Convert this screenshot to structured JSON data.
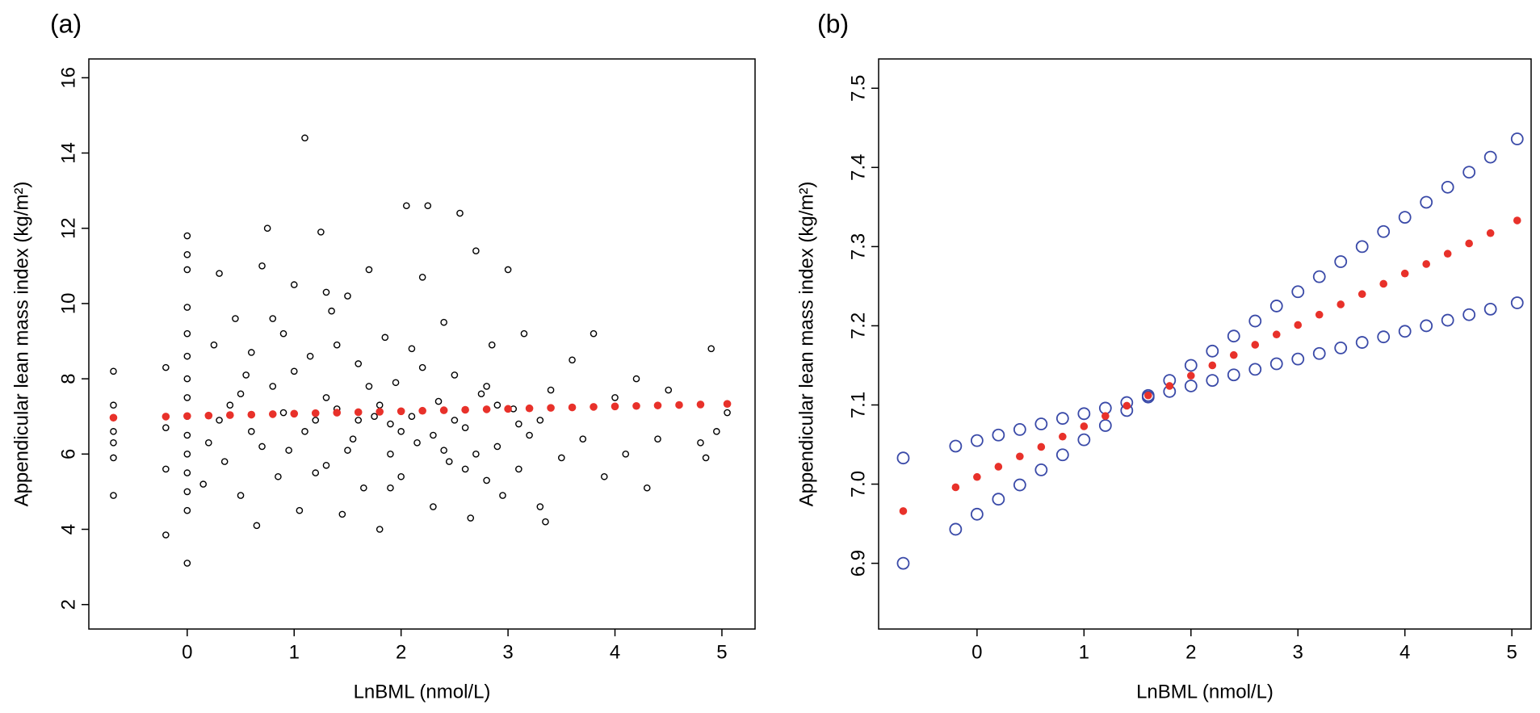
{
  "chart_data": [
    {
      "type": "scatter",
      "title": "(a)",
      "x_label": "LnBML (nmol/L)",
      "y_label": "Appendicular lean mass index (kg/m²)",
      "xlim": [
        -0.92,
        5.31
      ],
      "ylim": [
        1.35,
        16.5
      ],
      "xticks": [
        0,
        1,
        2,
        3,
        4,
        5
      ],
      "yticks": [
        2,
        4,
        6,
        8,
        10,
        12,
        14,
        16
      ],
      "series": [
        {
          "color": "#000000",
          "marker": "open",
          "x": [
            -0.69,
            -0.69,
            -0.69,
            -0.69,
            -0.69,
            -0.69,
            -0.2,
            -0.2,
            -0.2,
            -0.2,
            0,
            0,
            0,
            0,
            0,
            0,
            0,
            0,
            0,
            0,
            0,
            0,
            0,
            0,
            0,
            0.15,
            0.2,
            0.25,
            0.3,
            0.35,
            0.4,
            0.45,
            0.5,
            0.55,
            0.6,
            0.65,
            0.7,
            0.75,
            0.8,
            0.85,
            0.9,
            0.95,
            1.0,
            1.05,
            1.1,
            1.15,
            1.2,
            1.25,
            1.3,
            1.35,
            1.4,
            1.45,
            1.5,
            1.55,
            1.6,
            1.65,
            1.7,
            1.75,
            1.8,
            1.85,
            1.9,
            1.95,
            2.0,
            2.05,
            2.1,
            2.15,
            2.2,
            2.25,
            2.3,
            2.35,
            2.4,
            2.45,
            2.5,
            2.55,
            2.6,
            2.65,
            2.7,
            2.75,
            2.8,
            2.85,
            2.9,
            2.95,
            3.0,
            3.05,
            3.1,
            3.15,
            3.2,
            3.3,
            3.35,
            3.4,
            3.5,
            3.6,
            3.7,
            3.8,
            3.9,
            4.0,
            4.1,
            4.2,
            4.3,
            4.4,
            4.5,
            4.8,
            4.85,
            4.9,
            4.95,
            5.05,
            0.3,
            0.5,
            0.7,
            0.9,
            1.1,
            1.3,
            1.5,
            1.7,
            1.9,
            2.1,
            2.3,
            2.5,
            2.7,
            2.9,
            3.1,
            1.0,
            1.2,
            1.4,
            1.6,
            1.8,
            2.0,
            2.2,
            2.4,
            2.6,
            0.8,
            0.6,
            1.3,
            1.9,
            2.8,
            3.3
          ],
          "values": [
            4.9,
            5.9,
            6.3,
            6.6,
            7.3,
            8.2,
            3.85,
            5.6,
            6.7,
            8.3,
            3.1,
            4.5,
            5.0,
            5.5,
            6.0,
            6.5,
            7.0,
            7.5,
            8.0,
            8.6,
            9.2,
            9.9,
            10.9,
            11.3,
            11.8,
            5.2,
            6.3,
            8.9,
            10.8,
            5.8,
            7.3,
            9.6,
            4.9,
            8.1,
            6.6,
            4.1,
            11.0,
            12.0,
            7.8,
            5.4,
            9.2,
            6.1,
            10.5,
            4.5,
            14.4,
            8.6,
            6.9,
            11.9,
            5.7,
            9.8,
            7.2,
            4.4,
            10.2,
            6.4,
            8.4,
            5.1,
            10.9,
            7.0,
            4.0,
            9.1,
            6.0,
            7.9,
            5.4,
            12.6,
            8.8,
            6.3,
            10.7,
            12.6,
            4.6,
            7.4,
            9.5,
            5.8,
            8.1,
            12.4,
            6.7,
            4.3,
            11.4,
            7.6,
            5.3,
            8.9,
            6.2,
            4.9,
            10.9,
            7.2,
            5.6,
            9.2,
            6.5,
            4.6,
            4.2,
            7.7,
            5.9,
            8.5,
            6.4,
            9.2,
            5.4,
            7.5,
            6.0,
            8.0,
            5.1,
            6.4,
            7.7,
            6.3,
            5.9,
            8.8,
            6.6,
            7.1,
            6.9,
            7.6,
            6.2,
            7.1,
            6.6,
            7.5,
            6.1,
            7.8,
            6.8,
            7.0,
            6.5,
            6.9,
            6.0,
            7.3,
            6.8,
            8.2,
            5.5,
            8.9,
            6.9,
            7.3,
            6.6,
            8.3,
            6.1,
            5.6,
            9.6,
            8.7,
            10.3,
            5.1,
            7.8,
            6.9
          ]
        },
        {
          "color": "#e8312a",
          "marker": "filled",
          "x": [
            -0.69,
            -0.2,
            0,
            0.2,
            0.4,
            0.6,
            0.8,
            1.0,
            1.2,
            1.4,
            1.6,
            1.8,
            2.0,
            2.2,
            2.4,
            2.6,
            2.8,
            3.0,
            3.2,
            3.4,
            3.6,
            3.8,
            4.0,
            4.2,
            4.4,
            4.6,
            4.8,
            5.05
          ],
          "values": [
            6.966,
            6.996,
            7.009,
            7.022,
            7.035,
            7.047,
            7.06,
            7.073,
            7.086,
            7.099,
            7.112,
            7.124,
            7.137,
            7.15,
            7.163,
            7.176,
            7.189,
            7.201,
            7.214,
            7.227,
            7.24,
            7.253,
            7.266,
            7.278,
            7.291,
            7.304,
            7.317,
            7.333
          ]
        }
      ]
    },
    {
      "type": "scatter",
      "title": "(b)",
      "x_label": "LnBML (nmol/L)",
      "y_label": "Appendicular lean mass index (kg/m²)",
      "xlim": [
        -0.92,
        5.18
      ],
      "ylim": [
        6.817,
        7.537
      ],
      "xticks": [
        0,
        1,
        2,
        3,
        4,
        5
      ],
      "yticks": [
        6.9,
        {
          "value": 7,
          "label": "7.0"
        },
        7.1,
        7.2,
        7.3,
        7.4,
        7.5
      ],
      "series": [
        {
          "color": "#3a4aa8",
          "marker": "open",
          "x": [
            -0.69,
            -0.2,
            0,
            0.2,
            0.4,
            0.6,
            0.8,
            1.0,
            1.2,
            1.4,
            1.6,
            1.8,
            2.0,
            2.2,
            2.4,
            2.6,
            2.8,
            3.0,
            3.2,
            3.4,
            3.6,
            3.8,
            4.0,
            4.2,
            4.4,
            4.6,
            4.8,
            5.05
          ],
          "values": [
            6.9,
            6.943,
            6.962,
            6.981,
            6.999,
            7.018,
            7.037,
            7.056,
            7.074,
            7.093,
            7.112,
            7.131,
            7.15,
            7.168,
            7.187,
            7.206,
            7.225,
            7.243,
            7.262,
            7.281,
            7.3,
            7.319,
            7.337,
            7.356,
            7.375,
            7.394,
            7.413,
            7.436
          ]
        },
        {
          "color": "#3a4aa8",
          "marker": "open",
          "x": [
            -0.69,
            -0.2,
            0,
            0.2,
            0.4,
            0.6,
            0.8,
            1.0,
            1.2,
            1.4,
            1.6,
            1.8,
            2.0,
            2.2,
            2.4,
            2.6,
            2.8,
            3.0,
            3.2,
            3.4,
            3.6,
            3.8,
            4.0,
            4.2,
            4.4,
            4.6,
            4.8,
            5.05
          ],
          "values": [
            7.033,
            7.048,
            7.055,
            7.062,
            7.069,
            7.076,
            7.083,
            7.089,
            7.096,
            7.103,
            7.11,
            7.117,
            7.124,
            7.131,
            7.138,
            7.145,
            7.152,
            7.158,
            7.165,
            7.172,
            7.179,
            7.186,
            7.193,
            7.2,
            7.207,
            7.214,
            7.221,
            7.229
          ]
        },
        {
          "color": "#e8312a",
          "marker": "filled",
          "x": [
            -0.69,
            -0.2,
            0,
            0.2,
            0.4,
            0.6,
            0.8,
            1.0,
            1.2,
            1.4,
            1.6,
            1.8,
            2.0,
            2.2,
            2.4,
            2.6,
            2.8,
            3.0,
            3.2,
            3.4,
            3.6,
            3.8,
            4.0,
            4.2,
            4.4,
            4.6,
            4.8,
            5.05
          ],
          "values": [
            6.966,
            6.996,
            7.009,
            7.022,
            7.035,
            7.047,
            7.06,
            7.073,
            7.086,
            7.099,
            7.112,
            7.124,
            7.137,
            7.15,
            7.163,
            7.176,
            7.189,
            7.201,
            7.214,
            7.227,
            7.24,
            7.253,
            7.266,
            7.278,
            7.291,
            7.304,
            7.317,
            7.333
          ]
        }
      ]
    }
  ]
}
